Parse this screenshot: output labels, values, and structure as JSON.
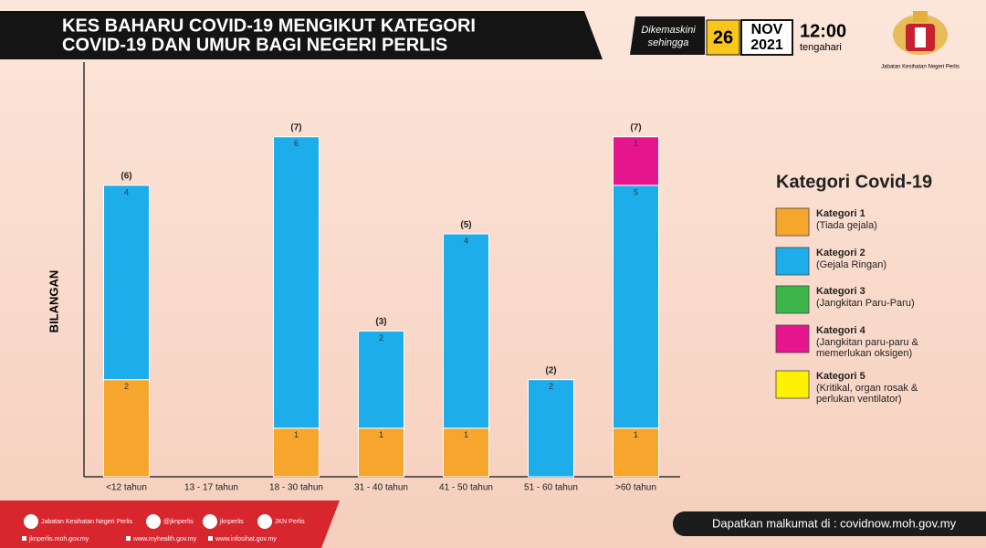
{
  "header": {
    "title_lines": [
      "KES BAHARU COVID-19 MENGIKUT KATEGORI",
      "COVID-19 DAN UMUR BAGI NEGERI PERLIS"
    ],
    "updated_label_lines": [
      "Dikemaskini",
      "sehingga"
    ],
    "day": "26",
    "month": "NOV",
    "year": "2021",
    "time": "12:00",
    "time_note": "tengahari",
    "agency": "Jabatan Kesihatan Negeri Perlis"
  },
  "chart_data": {
    "type": "stacked-bar",
    "y_label": "BILANGAN",
    "categories": [
      "<12 tahun",
      "13 - 17 tahun",
      "18 - 30 tahun",
      "31 - 40 tahun",
      "41 - 50 tahun",
      "51 - 60 tahun",
      ">60 tahun"
    ],
    "ylim": [
      0,
      8.5
    ],
    "legend_title": "Kategori Covid-19",
    "series": [
      {
        "name": "Kategori 1",
        "description_lines": [
          "(Tiada gejala)"
        ],
        "color": "#f6a52d",
        "values": [
          2,
          null,
          1,
          1,
          1,
          null,
          1
        ]
      },
      {
        "name": "Kategori 2",
        "description_lines": [
          "(Gejala Ringan)"
        ],
        "color": "#1cadea",
        "values": [
          4,
          null,
          6,
          2,
          4,
          2,
          5
        ]
      },
      {
        "name": "Kategori 3",
        "description_lines": [
          "(Jangkitan Paru-Paru)"
        ],
        "color": "#3cb54a",
        "values": [
          null,
          null,
          null,
          null,
          null,
          null,
          null
        ]
      },
      {
        "name": "Kategori 4",
        "description_lines": [
          "(Jangkitan paru-paru &",
          "memerlukan oksigen)"
        ],
        "color": "#e5168d",
        "values": [
          null,
          null,
          null,
          null,
          null,
          null,
          1
        ]
      },
      {
        "name": "Kategori 5",
        "description_lines": [
          "(Kritikal, organ rosak &",
          "perlukan ventilator)"
        ],
        "color": "#fff200",
        "values": [
          null,
          null,
          null,
          null,
          null,
          null,
          null
        ]
      }
    ],
    "totals": {
      "values": [
        6,
        null,
        7,
        3,
        5,
        2,
        7
      ],
      "value_labels": [
        "(6)",
        null,
        "(7)",
        "(3)",
        "(5)",
        "(2)",
        "(7)"
      ]
    }
  },
  "footer": {
    "social": [
      "Jabatan Kesihatan Negeri Perlis",
      "@jknperlis",
      "jknperlis",
      "JKN Perlis"
    ],
    "sites": [
      "jknperlis.moh.gov.my",
      "www.myhealth.gov.my",
      "www.infosihat.gov.my"
    ],
    "info": "Dapatkan malkumat di : covidnow.moh.gov.my"
  }
}
